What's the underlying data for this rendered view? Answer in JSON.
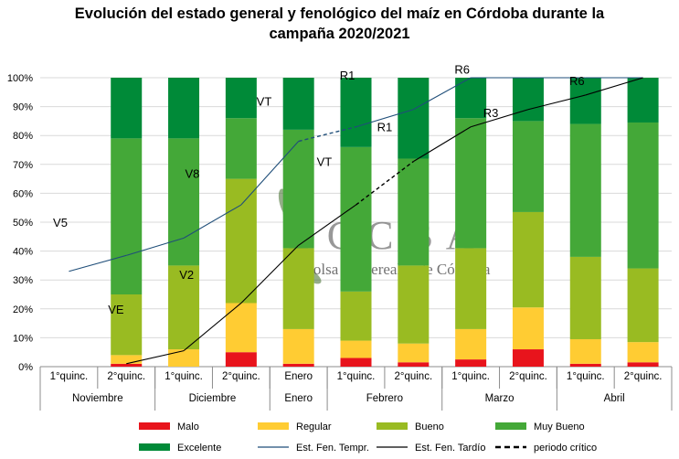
{
  "chart_data": {
    "type": "bar",
    "stacked": true,
    "title_line1": "Evolución del estado general y fenológico del maíz en Córdoba durante la",
    "title_line2": "campaña 2020/2021",
    "ylim": [
      0,
      100
    ],
    "y_ticks": [
      "0%",
      "10%",
      "20%",
      "30%",
      "40%",
      "50%",
      "60%",
      "70%",
      "80%",
      "90%",
      "100%"
    ],
    "grid": true,
    "categories": [
      "1°quinc.",
      "2°quinc.",
      "1°quinc.",
      "2°quinc.",
      "Enero",
      "1°quinc.",
      "2°quinc.",
      "1°quinc.",
      "2°quinc.",
      "1°quinc.",
      "2°quinc."
    ],
    "groups": [
      {
        "label": "Noviembre",
        "span": 2
      },
      {
        "label": "Diciembre",
        "span": 2
      },
      {
        "label": "Enero",
        "span": 1
      },
      {
        "label": "Febrero",
        "span": 2
      },
      {
        "label": "Marzo",
        "span": 2
      },
      {
        "label": "Abril",
        "span": 2
      }
    ],
    "series": [
      {
        "name": "Malo",
        "color": "#e8141c",
        "values": [
          null,
          1,
          0,
          5,
          1,
          3,
          1.5,
          2.5,
          6,
          1,
          1.5
        ]
      },
      {
        "name": "Regular",
        "color": "#ffcc33",
        "values": [
          null,
          3,
          6,
          17,
          12,
          6,
          6.5,
          10.5,
          14.5,
          8.5,
          7
        ]
      },
      {
        "name": "Bueno",
        "color": "#99bb22",
        "values": [
          null,
          21,
          29,
          43,
          28,
          17,
          27,
          28,
          33,
          28.5,
          25.5
        ]
      },
      {
        "name": "Muy Bueno",
        "color": "#44a838",
        "values": [
          null,
          54,
          44,
          21,
          41,
          50,
          37,
          45,
          31.5,
          46,
          50.5
        ]
      },
      {
        "name": "Excelente",
        "color": "#008a38",
        "values": [
          null,
          21,
          21,
          14,
          18,
          24,
          28,
          14,
          15,
          16,
          15.5
        ]
      }
    ],
    "lines": [
      {
        "name": "Est. Fen. Tempr.",
        "color": "#1f4e79",
        "points": [
          [
            0,
            33
          ],
          [
            1,
            38.5
          ],
          [
            2,
            44.5
          ],
          [
            3,
            56
          ],
          [
            4,
            78
          ],
          [
            5,
            83
          ],
          [
            6,
            89
          ],
          [
            7,
            100
          ],
          [
            8,
            100
          ],
          [
            9,
            100
          ],
          [
            10,
            100
          ]
        ],
        "dashed_segments": [
          [
            4,
            5
          ]
        ]
      },
      {
        "name": "Est. Fen. Tardío",
        "color": "#000000",
        "points": [
          [
            1,
            1
          ],
          [
            2,
            5.5
          ],
          [
            3,
            22
          ],
          [
            4,
            42
          ],
          [
            5,
            56
          ],
          [
            6,
            71
          ],
          [
            7,
            83
          ],
          [
            8,
            89
          ],
          [
            9,
            94
          ],
          [
            10,
            100
          ]
        ],
        "dashed_segments": [
          [
            5,
            6
          ]
        ]
      }
    ],
    "critical_period_label": "periodo crítico",
    "annotations": [
      {
        "text": "V5",
        "x": -0.15,
        "y": 50
      },
      {
        "text": "VE",
        "x": 0.82,
        "y": 20
      },
      {
        "text": "V8",
        "x": 2.15,
        "y": 67
      },
      {
        "text": "V2",
        "x": 2.05,
        "y": 32
      },
      {
        "text": "VT",
        "x": 3.4,
        "y": 92
      },
      {
        "text": "VT",
        "x": 4.45,
        "y": 71
      },
      {
        "text": "R1",
        "x": 4.85,
        "y": 101
      },
      {
        "text": "R1",
        "x": 5.5,
        "y": 83
      },
      {
        "text": "R6",
        "x": 6.85,
        "y": 103
      },
      {
        "text": "R3",
        "x": 7.35,
        "y": 88
      },
      {
        "text": "R6",
        "x": 8.85,
        "y": 99
      }
    ],
    "watermark": {
      "title": "BCCBA",
      "subtitle": "Bolsa de Cereales de Córdoba"
    }
  }
}
